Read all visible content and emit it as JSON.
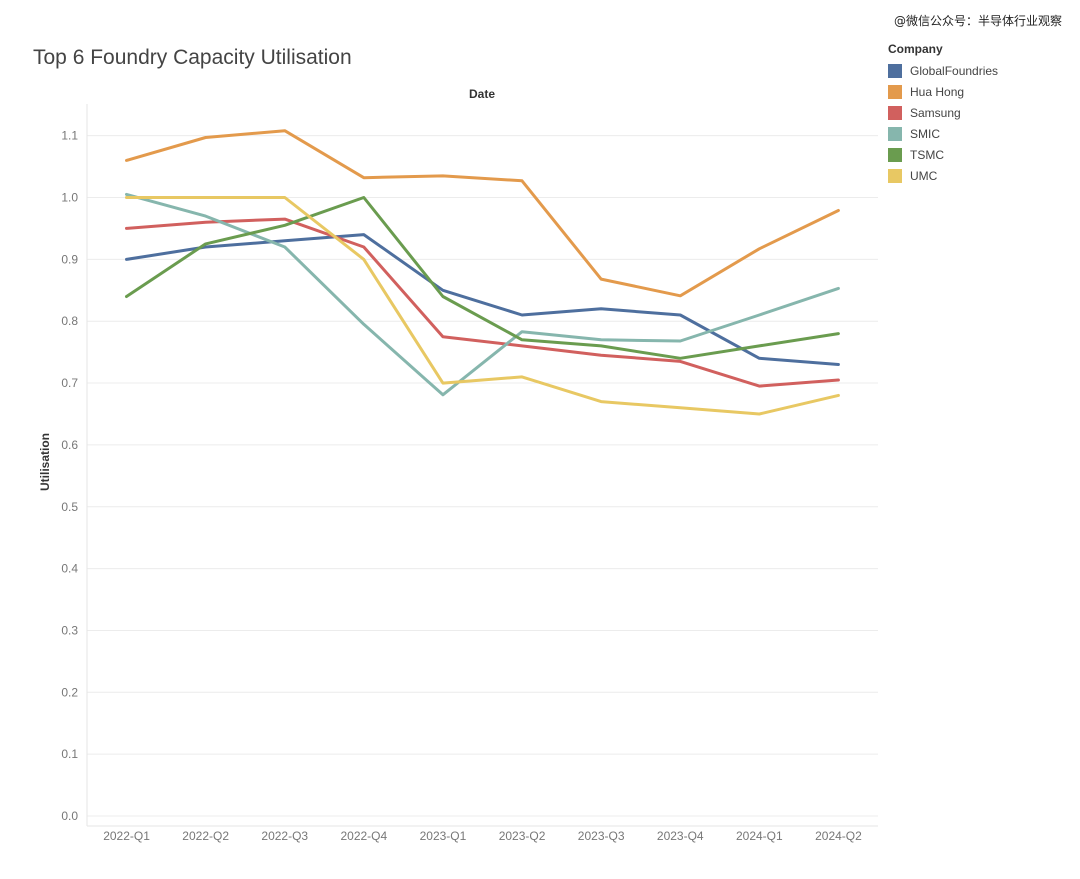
{
  "watermark": "@微信公众号：半导体行业观察",
  "chart_data": {
    "type": "line",
    "title": "Top 6 Foundry Capacity Utilisation",
    "xlabel": "Date",
    "ylabel": "Utilisation",
    "legend_title": "Company",
    "legend_position": "top-right",
    "grid": true,
    "ylim": [
      0,
      1.15
    ],
    "yticks": [
      0.0,
      0.1,
      0.2,
      0.3,
      0.4,
      0.5,
      0.6,
      0.7,
      0.8,
      0.9,
      1.0,
      1.1
    ],
    "ytick_labels": [
      "0.0",
      "0.1",
      "0.2",
      "0.3",
      "0.4",
      "0.5",
      "0.6",
      "0.7",
      "0.8",
      "0.9",
      "1.0",
      "1.1"
    ],
    "categories": [
      "2022-Q1",
      "2022-Q2",
      "2022-Q3",
      "2022-Q4",
      "2023-Q1",
      "2023-Q2",
      "2023-Q3",
      "2023-Q4",
      "2024-Q1",
      "2024-Q2"
    ],
    "series": [
      {
        "name": "GlobalFoundries",
        "color": "#4e6f9e",
        "values": [
          0.9,
          0.92,
          0.93,
          0.94,
          0.85,
          0.81,
          0.82,
          0.81,
          0.74,
          0.73
        ]
      },
      {
        "name": "Hua Hong",
        "color": "#e39a4c",
        "values": [
          1.06,
          1.097,
          1.108,
          1.032,
          1.035,
          1.027,
          0.868,
          0.841,
          0.917,
          0.979
        ]
      },
      {
        "name": "Samsung",
        "color": "#d1605e",
        "values": [
          0.95,
          0.96,
          0.965,
          0.92,
          0.775,
          0.76,
          0.745,
          0.735,
          0.695,
          0.705
        ]
      },
      {
        "name": "SMIC",
        "color": "#86b6ad",
        "values": [
          1.005,
          0.97,
          0.92,
          0.795,
          0.681,
          0.783,
          0.77,
          0.768,
          0.81,
          0.853
        ]
      },
      {
        "name": "TSMC",
        "color": "#6a9c4f",
        "values": [
          0.84,
          0.925,
          0.955,
          1.0,
          0.84,
          0.77,
          0.76,
          0.74,
          0.76,
          0.78
        ]
      },
      {
        "name": "UMC",
        "color": "#e8c863",
        "values": [
          1.0,
          1.0,
          1.0,
          0.9,
          0.7,
          0.71,
          0.67,
          0.66,
          0.65,
          0.68
        ]
      }
    ]
  }
}
